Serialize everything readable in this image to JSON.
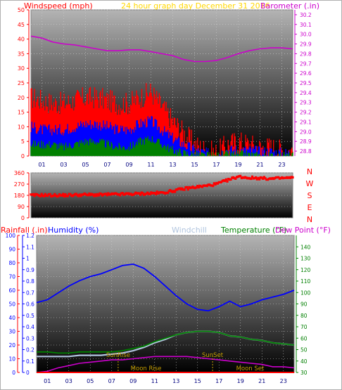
{
  "header": {
    "windspeed_label": "Windspeed (mph)",
    "subtitle": "24 hour graph day   December 31 2016",
    "barometer_label": "Barometer (.in)"
  },
  "direction_letters": [
    "N",
    "W",
    "S",
    "E",
    "N"
  ],
  "lower_header": {
    "rainfall_label": "Rainfall (.in)",
    "humidity_label": "Humidity (%)",
    "windchill_label": "Windchill",
    "temperature_label": "Temperature (°F)",
    "dewpoint_label": "Dew Point (°F)"
  },
  "annotations": {
    "sunrise": "SunRise",
    "sunset": "SunSet",
    "moonrise": "Moon Rise",
    "moonset": "Moon Set"
  },
  "colors": {
    "wind_gust": "#ff0000",
    "wind_avg": "#0000ff",
    "wind_low": "#008000",
    "barometer": "#cc00cc",
    "direction": "#ff0000",
    "humidity": "#0000ff",
    "windchill": "#b0c4de",
    "temperature": "#008000",
    "dewpoint": "#cc00cc",
    "rain": "#ff0000",
    "annotation": "#c8a000"
  },
  "chart_data": [
    {
      "type": "line",
      "title": "24 hour graph day   December 31 2016",
      "xlabel": "",
      "x_ticks": [
        "01",
        "03",
        "05",
        "07",
        "09",
        "11",
        "13",
        "15",
        "17",
        "19",
        "21",
        "23"
      ],
      "xlim": [
        0,
        24
      ],
      "left_axis": {
        "label": "Windspeed (mph)",
        "ylim": [
          0,
          50
        ],
        "ticks": [
          0,
          5,
          10,
          15,
          20,
          25,
          30,
          35,
          40,
          45,
          50
        ]
      },
      "right_axis": {
        "label": "Barometer (.in)",
        "ylim": [
          28.75,
          30.25
        ],
        "ticks": [
          28.8,
          28.9,
          29,
          29.1,
          29.2,
          29.3,
          29.4,
          29.5,
          29.6,
          29.7,
          29.8,
          29.9,
          30,
          30.1,
          30.2
        ]
      },
      "x": [
        0,
        1,
        2,
        3,
        4,
        5,
        6,
        7,
        8,
        9,
        10,
        11,
        12,
        13,
        14,
        15,
        16,
        17,
        18,
        19,
        20,
        21,
        22,
        23,
        24
      ],
      "series": [
        {
          "name": "Wind Gust",
          "axis": "left",
          "values": [
            20,
            19,
            18,
            18,
            19,
            20,
            20,
            19,
            18,
            18,
            20,
            22,
            17,
            12,
            8,
            4,
            2,
            1,
            4,
            5,
            4,
            3,
            3,
            2,
            2
          ]
        },
        {
          "name": "Wind Average",
          "axis": "left",
          "values": [
            10,
            9,
            9,
            9,
            10,
            11,
            11,
            10,
            9,
            9,
            11,
            12,
            9,
            6,
            4,
            2,
            1,
            0.5,
            2,
            2,
            2,
            1.5,
            1.5,
            1,
            1
          ]
        },
        {
          "name": "Wind Low",
          "axis": "left",
          "values": [
            4,
            4,
            4,
            3,
            4,
            5,
            5,
            4,
            3,
            3,
            5,
            6,
            4,
            2,
            1,
            0.5,
            0,
            0,
            0.5,
            0.5,
            0.5,
            0,
            0,
            0,
            0
          ]
        },
        {
          "name": "Barometer",
          "axis": "right",
          "values": [
            29.98,
            29.96,
            29.92,
            29.9,
            29.89,
            29.87,
            29.85,
            29.83,
            29.83,
            29.84,
            29.84,
            29.82,
            29.8,
            29.78,
            29.74,
            29.72,
            29.72,
            29.73,
            29.76,
            29.8,
            29.83,
            29.85,
            29.86,
            29.86,
            29.85
          ]
        }
      ]
    },
    {
      "type": "scatter",
      "title": "",
      "y_ticks": [
        0,
        90,
        180,
        270,
        360
      ],
      "ylim": [
        0,
        360
      ],
      "xlim": [
        0,
        24
      ],
      "x": [
        0,
        1,
        2,
        3,
        4,
        5,
        6,
        7,
        8,
        9,
        10,
        11,
        12,
        13,
        14,
        15,
        16,
        17,
        18,
        19,
        20,
        21,
        22,
        23,
        24
      ],
      "series": [
        {
          "name": "Wind Direction",
          "values": [
            180,
            182,
            180,
            181,
            183,
            185,
            184,
            186,
            188,
            190,
            193,
            196,
            200,
            215,
            232,
            245,
            255,
            270,
            300,
            330,
            320,
            318,
            312,
            318,
            320
          ]
        }
      ]
    },
    {
      "type": "line",
      "title": "",
      "x_ticks": [
        "01",
        "03",
        "05",
        "07",
        "09",
        "11",
        "13",
        "15",
        "17",
        "19",
        "21",
        "23"
      ],
      "xlim": [
        0,
        24
      ],
      "rain_axis": {
        "label": "Rainfall (.in)",
        "ylim": [
          0,
          1.2
        ],
        "ticks": [
          0,
          0.1,
          0.2,
          0.3,
          0.4,
          0.5,
          0.6,
          0.7,
          0.8,
          0.9,
          1,
          1.1,
          1.2
        ]
      },
      "humidity_axis": {
        "label": "Humidity (%)",
        "ylim": [
          0,
          100
        ],
        "ticks": [
          0,
          10,
          20,
          30,
          40,
          50,
          60,
          70,
          80,
          90,
          100
        ]
      },
      "temperature_axis": {
        "label": "Temperature (°F)",
        "ylim": [
          30,
          150
        ],
        "ticks": [
          30,
          40,
          50,
          60,
          70,
          80,
          90,
          100,
          110,
          120,
          130,
          140
        ]
      },
      "x": [
        0,
        1,
        2,
        3,
        4,
        5,
        6,
        7,
        8,
        9,
        10,
        11,
        12,
        13,
        14,
        15,
        16,
        17,
        18,
        19,
        20,
        21,
        22,
        23,
        24
      ],
      "series": [
        {
          "name": "Humidity",
          "axis": "humidity",
          "values": [
            51,
            53,
            58,
            63,
            67,
            70,
            72,
            75,
            78,
            79,
            76,
            70,
            63,
            56,
            50,
            46,
            45,
            48,
            52,
            48,
            50,
            53,
            55,
            57,
            60
          ]
        },
        {
          "name": "Temperature",
          "axis": "temperature",
          "values": [
            48,
            48,
            47,
            47,
            48,
            48,
            48,
            48,
            49,
            51,
            53,
            57,
            60,
            63,
            65,
            66,
            66,
            65,
            62,
            61,
            59,
            58,
            56,
            55,
            54
          ]
        },
        {
          "name": "Windchill",
          "axis": "temperature",
          "values": [
            44,
            44,
            44,
            44,
            45,
            45,
            45,
            46,
            47,
            49,
            52,
            56,
            59,
            63,
            65,
            66,
            66,
            65,
            62,
            61,
            59,
            58,
            56,
            55,
            54
          ]
        },
        {
          "name": "Dew Point",
          "axis": "temperature",
          "values": [
            30,
            31,
            34,
            36,
            38,
            39,
            40,
            41,
            41,
            42,
            43,
            44,
            44,
            44,
            44,
            43,
            42,
            41,
            40,
            39,
            38,
            37,
            35,
            35,
            34
          ]
        },
        {
          "name": "Rainfall",
          "axis": "rain",
          "values": [
            0,
            0,
            0,
            0,
            0,
            0,
            0,
            0,
            0,
            0,
            0,
            0,
            0,
            0,
            0,
            0,
            0,
            0,
            0,
            0,
            0,
            0,
            0,
            0,
            0
          ]
        }
      ],
      "events": {
        "sunrise": 7.6,
        "sunset": 16.4,
        "moonrise": 10.2,
        "moonset": 19.9
      }
    }
  ]
}
